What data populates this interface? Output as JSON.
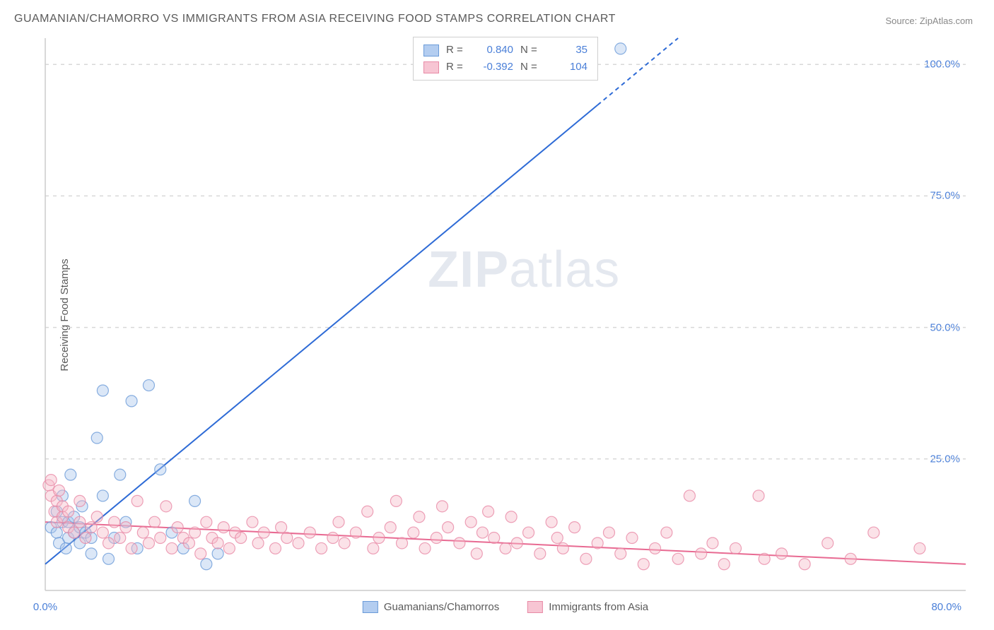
{
  "title": "GUAMANIAN/CHAMORRO VS IMMIGRANTS FROM ASIA RECEIVING FOOD STAMPS CORRELATION CHART",
  "source": "Source: ZipAtlas.com",
  "watermark_bold": "ZIP",
  "watermark_light": "atlas",
  "y_axis_label": "Receiving Food Stamps",
  "chart": {
    "type": "scatter",
    "xlim": [
      0,
      80
    ],
    "ylim": [
      0,
      105
    ],
    "x_ticks": [
      {
        "pos": 0,
        "label": "0.0%"
      },
      {
        "pos": 80,
        "label": "80.0%"
      }
    ],
    "y_ticks": [
      {
        "pos": 25,
        "label": "25.0%"
      },
      {
        "pos": 50,
        "label": "50.0%"
      },
      {
        "pos": 75,
        "label": "75.0%"
      },
      {
        "pos": 100,
        "label": "100.0%"
      }
    ],
    "grid_color": "#d8d8d8",
    "background_color": "#ffffff",
    "marker_radius": 8,
    "marker_opacity": 0.42,
    "marker_stroke_opacity": 0.8,
    "series": [
      {
        "name": "Guamanians/Chamorros",
        "color_fill": "#a9c5ec",
        "color_stroke": "#6b9bd8",
        "swatch_fill": "#b3cdf0",
        "swatch_border": "#6b9bd8",
        "R": "0.840",
        "N": "35",
        "trend": {
          "x1": 0,
          "y1": 5,
          "x2": 55,
          "y2": 105,
          "dash_from_x": 48,
          "color": "#2e6bd6",
          "width": 2
        },
        "points": [
          [
            0.5,
            12
          ],
          [
            1,
            15
          ],
          [
            1,
            11
          ],
          [
            1.2,
            9
          ],
          [
            1.5,
            18
          ],
          [
            1.5,
            13
          ],
          [
            1.8,
            8
          ],
          [
            2,
            10
          ],
          [
            2,
            13
          ],
          [
            2.2,
            22
          ],
          [
            2.5,
            11
          ],
          [
            2.5,
            14
          ],
          [
            3,
            9
          ],
          [
            3,
            12
          ],
          [
            3.2,
            16
          ],
          [
            3.5,
            11
          ],
          [
            4,
            7
          ],
          [
            4,
            10
          ],
          [
            4.5,
            29
          ],
          [
            5,
            38
          ],
          [
            5,
            18
          ],
          [
            5.5,
            6
          ],
          [
            6,
            10
          ],
          [
            6.5,
            22
          ],
          [
            7,
            13
          ],
          [
            7.5,
            36
          ],
          [
            8,
            8
          ],
          [
            9,
            39
          ],
          [
            10,
            23
          ],
          [
            11,
            11
          ],
          [
            12,
            8
          ],
          [
            13,
            17
          ],
          [
            14,
            5
          ],
          [
            15,
            7
          ],
          [
            50,
            103
          ]
        ]
      },
      {
        "name": "Immigrants from Asia",
        "color_fill": "#f5b9c9",
        "color_stroke": "#e88aa6",
        "swatch_fill": "#f7c5d3",
        "swatch_border": "#e88aa6",
        "R": "-0.392",
        "N": "104",
        "trend": {
          "x1": 0,
          "y1": 13,
          "x2": 80,
          "y2": 5,
          "color": "#e86a92",
          "width": 2
        },
        "points": [
          [
            0.3,
            20
          ],
          [
            0.5,
            18
          ],
          [
            0.5,
            21
          ],
          [
            0.8,
            15
          ],
          [
            1,
            17
          ],
          [
            1,
            13
          ],
          [
            1.2,
            19
          ],
          [
            1.5,
            14
          ],
          [
            1.5,
            16
          ],
          [
            2,
            12
          ],
          [
            2,
            15
          ],
          [
            2.5,
            11
          ],
          [
            3,
            13
          ],
          [
            3,
            17
          ],
          [
            3.5,
            10
          ],
          [
            4,
            12
          ],
          [
            4.5,
            14
          ],
          [
            5,
            11
          ],
          [
            5.5,
            9
          ],
          [
            6,
            13
          ],
          [
            6.5,
            10
          ],
          [
            7,
            12
          ],
          [
            7.5,
            8
          ],
          [
            8,
            17
          ],
          [
            8.5,
            11
          ],
          [
            9,
            9
          ],
          [
            9.5,
            13
          ],
          [
            10,
            10
          ],
          [
            10.5,
            16
          ],
          [
            11,
            8
          ],
          [
            11.5,
            12
          ],
          [
            12,
            10
          ],
          [
            12.5,
            9
          ],
          [
            13,
            11
          ],
          [
            13.5,
            7
          ],
          [
            14,
            13
          ],
          [
            14.5,
            10
          ],
          [
            15,
            9
          ],
          [
            15.5,
            12
          ],
          [
            16,
            8
          ],
          [
            16.5,
            11
          ],
          [
            17,
            10
          ],
          [
            18,
            13
          ],
          [
            18.5,
            9
          ],
          [
            19,
            11
          ],
          [
            20,
            8
          ],
          [
            20.5,
            12
          ],
          [
            21,
            10
          ],
          [
            22,
            9
          ],
          [
            23,
            11
          ],
          [
            24,
            8
          ],
          [
            25,
            10
          ],
          [
            25.5,
            13
          ],
          [
            26,
            9
          ],
          [
            27,
            11
          ],
          [
            28,
            15
          ],
          [
            28.5,
            8
          ],
          [
            29,
            10
          ],
          [
            30,
            12
          ],
          [
            30.5,
            17
          ],
          [
            31,
            9
          ],
          [
            32,
            11
          ],
          [
            32.5,
            14
          ],
          [
            33,
            8
          ],
          [
            34,
            10
          ],
          [
            34.5,
            16
          ],
          [
            35,
            12
          ],
          [
            36,
            9
          ],
          [
            37,
            13
          ],
          [
            37.5,
            7
          ],
          [
            38,
            11
          ],
          [
            38.5,
            15
          ],
          [
            39,
            10
          ],
          [
            40,
            8
          ],
          [
            40.5,
            14
          ],
          [
            41,
            9
          ],
          [
            42,
            11
          ],
          [
            43,
            7
          ],
          [
            44,
            13
          ],
          [
            44.5,
            10
          ],
          [
            45,
            8
          ],
          [
            46,
            12
          ],
          [
            47,
            6
          ],
          [
            48,
            9
          ],
          [
            49,
            11
          ],
          [
            50,
            7
          ],
          [
            51,
            10
          ],
          [
            52,
            5
          ],
          [
            53,
            8
          ],
          [
            54,
            11
          ],
          [
            55,
            6
          ],
          [
            56,
            18
          ],
          [
            57,
            7
          ],
          [
            58,
            9
          ],
          [
            59,
            5
          ],
          [
            60,
            8
          ],
          [
            62,
            18
          ],
          [
            62.5,
            6
          ],
          [
            64,
            7
          ],
          [
            66,
            5
          ],
          [
            68,
            9
          ],
          [
            70,
            6
          ],
          [
            72,
            11
          ],
          [
            76,
            8
          ]
        ]
      }
    ]
  },
  "legend_top": {
    "r_label": "R =",
    "n_label": "N ="
  },
  "legend_bottom": [
    {
      "series": 0
    },
    {
      "series": 1
    }
  ]
}
